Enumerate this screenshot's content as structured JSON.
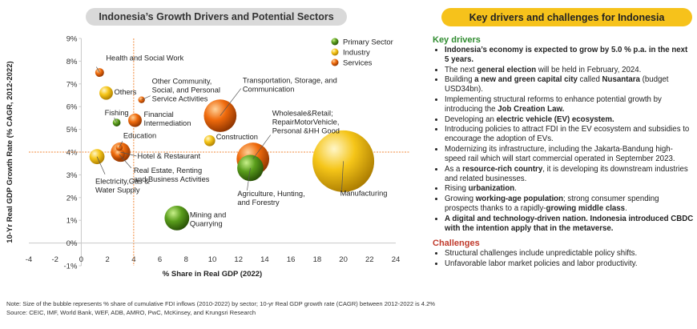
{
  "left_title": "Indonesia’s Growth Drivers and Potential Sectors",
  "right_title": "Key drivers and challenges for Indonesia",
  "chart_data": {
    "type": "scatter",
    "xlabel": "% Share in Real GDP (2022)",
    "ylabel": "10-Yr Real GDP Growth Rate (% CAGR, 2012-2022)",
    "xlim": [
      -4,
      24
    ],
    "ylim": [
      -1,
      9
    ],
    "x_ticks": [
      "-4",
      "-2",
      "0",
      "2",
      "4",
      "6",
      "8",
      "10",
      "12",
      "14",
      "16",
      "18",
      "20",
      "22",
      "24"
    ],
    "y_ticks": [
      "-1%",
      "0%",
      "1%",
      "2%",
      "3%",
      "4%",
      "5%",
      "6%",
      "7%",
      "8%",
      "9%"
    ],
    "reference_lines": {
      "x": 4,
      "y": 4
    },
    "legend": [
      {
        "name": "Primary Sector",
        "color": "#5a9e1c"
      },
      {
        "name": "Industry",
        "color": "#f5c518"
      },
      {
        "name": "Services",
        "color": "#ef6a0c"
      }
    ],
    "points": [
      {
        "label": "Health and Social Work",
        "x": 1.4,
        "y": 7.5,
        "size": 0.5,
        "sector": "Services"
      },
      {
        "label": "Others",
        "x": 1.9,
        "y": 6.6,
        "size": 1.2,
        "sector": "Industry"
      },
      {
        "label": "Other Community, Social, and Personal Service Activities",
        "x": 4.6,
        "y": 6.3,
        "size": 0.3,
        "sector": "Services"
      },
      {
        "label": "Fishing",
        "x": 2.7,
        "y": 5.3,
        "size": 0.4,
        "sector": "Primary Sector"
      },
      {
        "label": "Financial Intermediation",
        "x": 4.1,
        "y": 5.4,
        "size": 1.2,
        "sector": "Services"
      },
      {
        "label": "Education",
        "x": 2.9,
        "y": 4.2,
        "size": 0.3,
        "sector": "Services"
      },
      {
        "label": "Hotel & Restaurant",
        "x": 3.0,
        "y": 4.0,
        "size": 2.5,
        "sector": "Services"
      },
      {
        "label": "Electricity,Gas & Water Supply",
        "x": 1.2,
        "y": 3.8,
        "size": 1.5,
        "sector": "Industry"
      },
      {
        "label": "Real Estate, Renting and Business Activities",
        "x": 2.9,
        "y": 3.9,
        "size": 0.8,
        "sector": "Services"
      },
      {
        "label": "Transportation, Storage, and Communication",
        "x": 10.6,
        "y": 5.6,
        "size": 7.0,
        "sector": "Services"
      },
      {
        "label": "Construction",
        "x": 9.8,
        "y": 4.5,
        "size": 0.8,
        "sector": "Industry"
      },
      {
        "label": "Wholesale&Retail; RepairMotorVehicle, Personal &HH Good",
        "x": 13.1,
        "y": 3.7,
        "size": 7.0,
        "sector": "Services"
      },
      {
        "label": "Agriculture, Hunting, and Forestry",
        "x": 12.9,
        "y": 3.3,
        "size": 4.5,
        "sector": "Primary Sector"
      },
      {
        "label": "Manufacturing",
        "x": 20.0,
        "y": 3.6,
        "size": 25.0,
        "sector": "Industry"
      },
      {
        "label": "Mining and Quarrying",
        "x": 7.3,
        "y": 1.1,
        "size": 4.0,
        "sector": "Primary Sector"
      }
    ]
  },
  "key_drivers": {
    "heading": "Key drivers",
    "items": [
      [
        {
          "t": "Indonesia’s economy is expected to grow by 5.0 % p.a. in the next 5 years.",
          "b": true
        }
      ],
      [
        {
          "t": "The next ",
          "b": false
        },
        {
          "t": "general election",
          "b": true
        },
        {
          "t": " will be held in February, 2024.",
          "b": false
        }
      ],
      [
        {
          "t": "Building ",
          "b": false
        },
        {
          "t": "a new and green capital city",
          "b": true
        },
        {
          "t": " called ",
          "b": false
        },
        {
          "t": "Nusantara",
          "b": true
        },
        {
          "t": " (budget USD34bn).",
          "b": false
        }
      ],
      [
        {
          "t": "Implementing structural reforms to enhance potential growth by introducing the ",
          "b": false
        },
        {
          "t": "Job Creation Law.",
          "b": true
        }
      ],
      [
        {
          "t": "Developing an ",
          "b": false
        },
        {
          "t": "electric vehicle (EV) ecosystem.",
          "b": true
        }
      ],
      [
        {
          "t": "Introducing policies to attract FDI in the EV ecosystem and subsidies to encourage the adoption of EVs.",
          "b": false
        }
      ],
      [
        {
          "t": "Modernizing  its infrastructure, including the Jakarta-Bandung high-speed rail which will start commercial operated in September 2023.",
          "b": false
        }
      ],
      [
        {
          "t": "As a ",
          "b": false
        },
        {
          "t": "resource-rich country",
          "b": true
        },
        {
          "t": ", it is developing its downstream industries and related businesses.",
          "b": false
        }
      ],
      [
        {
          "t": "Rising ",
          "b": false
        },
        {
          "t": "urbanization",
          "b": true
        },
        {
          "t": ".",
          "b": false
        }
      ],
      [
        {
          "t": "Growing ",
          "b": false
        },
        {
          "t": "working-age population",
          "b": true
        },
        {
          "t": "; strong consumer spending prospects thanks to a rapidly-",
          "b": false
        },
        {
          "t": "growing middle class",
          "b": true
        },
        {
          "t": ".",
          "b": false
        }
      ],
      [
        {
          "t": "A digital and technology-driven nation. Indonesia introduced CBDC with the intention apply that in the metaverse.",
          "b": true
        }
      ]
    ]
  },
  "challenges": {
    "heading": "Challenges",
    "items": [
      "Structural challenges include unpredictable policy shifts.",
      "Unfavorable labor market policies and labor productivity."
    ]
  },
  "footnote": {
    "note": "Note:  Size of the bubble represents % share of cumulative FDI inflows (2010-2022) by sector; 10-yr Real GDP growth rate (CAGR) between 2012-2022 is 4.2%",
    "source": "Source: CEIC, IMF, World Bank, WEF, ADB, AMRO, PwC, McKinsey, and Krungsri Research"
  }
}
